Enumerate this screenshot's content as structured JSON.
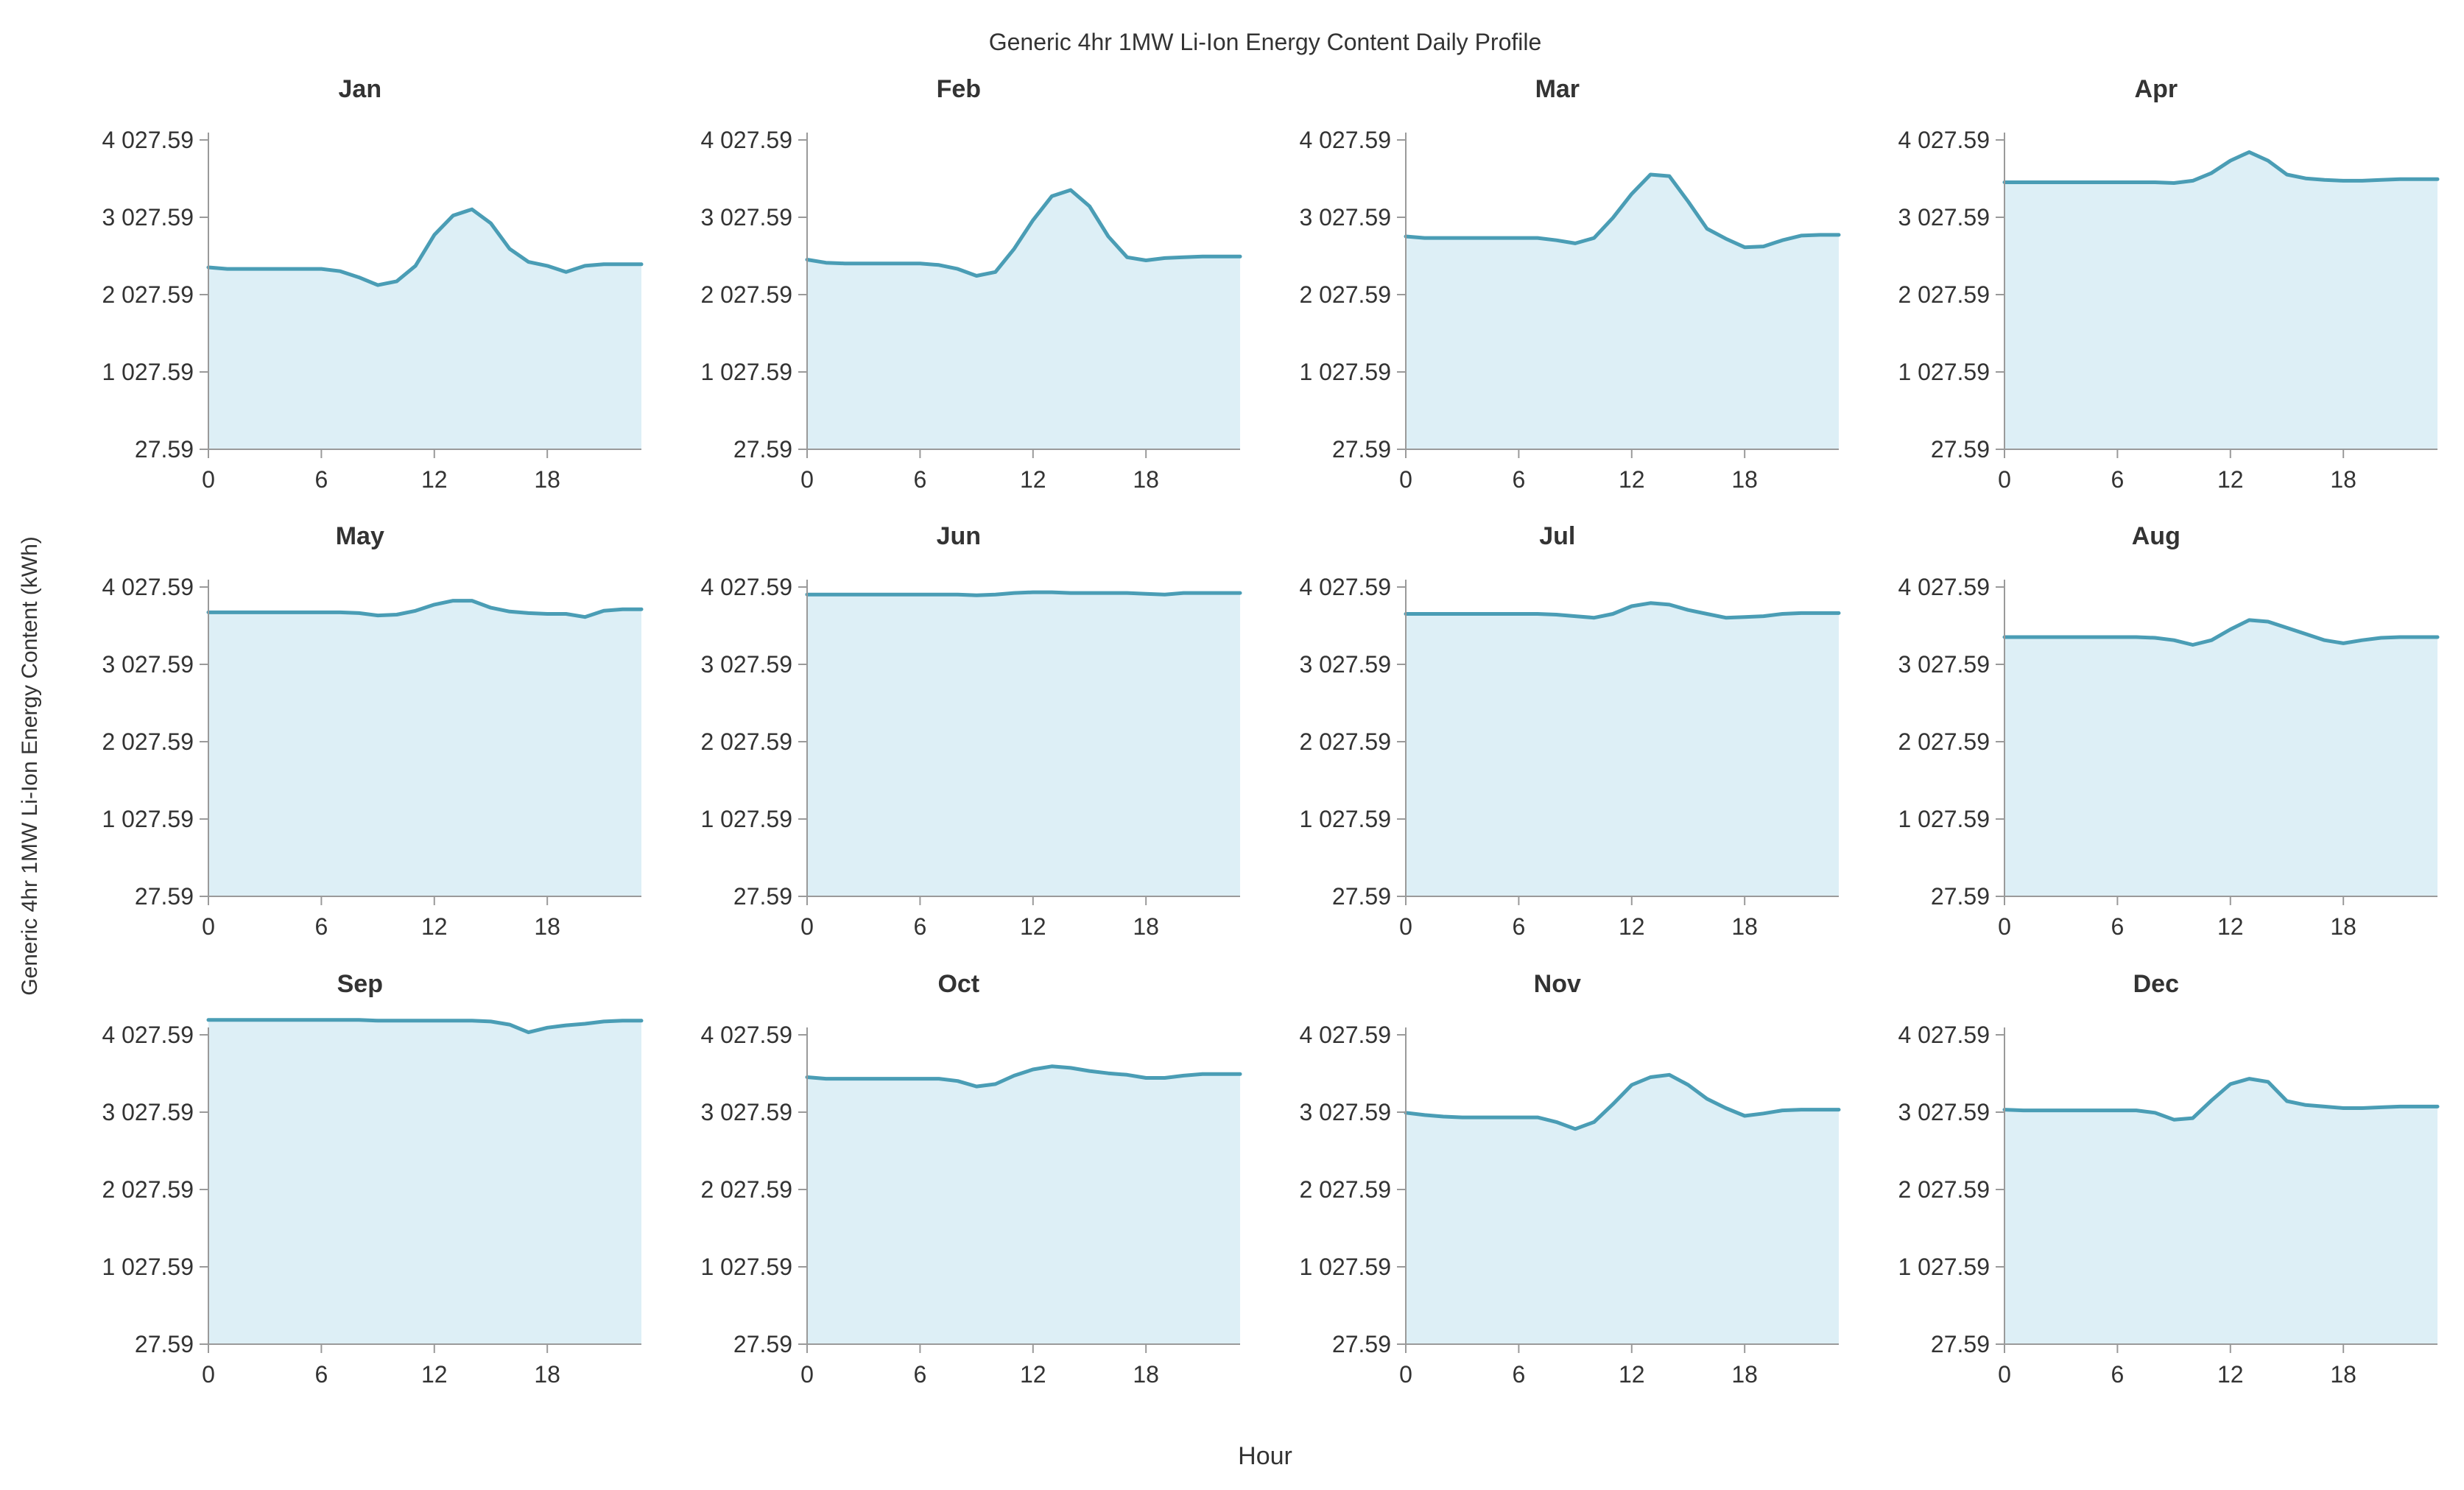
{
  "figure": {
    "title": "Generic 4hr 1MW Li-Ion Energy Content Daily Profile",
    "ylabel": "Generic 4hr 1MW Li-Ion Energy Content (kWh)",
    "xlabel": "Hour"
  },
  "colors": {
    "line": "#4a9db5",
    "fill": "#ddeff6",
    "axis": "#9a9a9a",
    "text": "#333333"
  },
  "chart_data": {
    "type": "area",
    "layout": "small-multiples-3x4",
    "xlabel": "Hour",
    "ylabel": "Generic 4hr 1MW Li-Ion Energy Content (kWh)",
    "ylim": [
      27.59,
      4027.59
    ],
    "xlim": [
      0,
      23
    ],
    "y_ticks": [
      27.59,
      1027.59,
      2027.59,
      3027.59,
      4027.59
    ],
    "y_tick_labels": [
      "27.59",
      "1 027.59",
      "2 027.59",
      "3 027.59",
      "4 027.59"
    ],
    "x_ticks": [
      0,
      6,
      12,
      18
    ],
    "x_tick_labels": [
      "0",
      "6",
      "12",
      "18"
    ],
    "x": [
      0,
      1,
      2,
      3,
      4,
      5,
      6,
      7,
      8,
      9,
      10,
      11,
      12,
      13,
      14,
      15,
      16,
      17,
      18,
      19,
      20,
      21,
      22,
      23
    ],
    "grid": false,
    "legend": "none",
    "panels": [
      {
        "title": "Jan",
        "values": [
          2380,
          2360,
          2360,
          2360,
          2360,
          2360,
          2360,
          2330,
          2250,
          2150,
          2200,
          2400,
          2800,
          3050,
          3130,
          2950,
          2620,
          2450,
          2400,
          2320,
          2400,
          2420,
          2420,
          2420
        ]
      },
      {
        "title": "Feb",
        "values": [
          2480,
          2440,
          2430,
          2430,
          2430,
          2430,
          2430,
          2410,
          2360,
          2270,
          2320,
          2620,
          2990,
          3300,
          3380,
          3170,
          2780,
          2510,
          2470,
          2500,
          2510,
          2520,
          2520,
          2520
        ]
      },
      {
        "title": "Mar",
        "values": [
          2780,
          2760,
          2760,
          2760,
          2760,
          2760,
          2760,
          2760,
          2730,
          2690,
          2760,
          3020,
          3330,
          3580,
          3560,
          3230,
          2880,
          2750,
          2640,
          2650,
          2730,
          2790,
          2800,
          2800
        ]
      },
      {
        "title": "Apr",
        "values": [
          3480,
          3480,
          3480,
          3480,
          3480,
          3480,
          3480,
          3480,
          3480,
          3470,
          3500,
          3600,
          3760,
          3870,
          3760,
          3580,
          3530,
          3510,
          3500,
          3500,
          3510,
          3520,
          3520,
          3520
        ]
      },
      {
        "title": "May",
        "values": [
          3700,
          3700,
          3700,
          3700,
          3700,
          3700,
          3700,
          3700,
          3690,
          3660,
          3670,
          3720,
          3800,
          3850,
          3850,
          3760,
          3710,
          3690,
          3680,
          3680,
          3640,
          3720,
          3740,
          3740
        ]
      },
      {
        "title": "Jun",
        "values": [
          3930,
          3930,
          3930,
          3930,
          3930,
          3930,
          3930,
          3930,
          3930,
          3920,
          3930,
          3950,
          3960,
          3960,
          3950,
          3950,
          3950,
          3950,
          3940,
          3930,
          3950,
          3950,
          3950,
          3950
        ]
      },
      {
        "title": "Jul",
        "values": [
          3680,
          3680,
          3680,
          3680,
          3680,
          3680,
          3680,
          3680,
          3670,
          3650,
          3630,
          3680,
          3780,
          3820,
          3800,
          3730,
          3680,
          3630,
          3640,
          3650,
          3680,
          3690,
          3690,
          3690
        ]
      },
      {
        "title": "Aug",
        "values": [
          3380,
          3380,
          3380,
          3380,
          3380,
          3380,
          3380,
          3380,
          3370,
          3340,
          3280,
          3340,
          3480,
          3600,
          3580,
          3500,
          3420,
          3340,
          3300,
          3340,
          3370,
          3380,
          3380,
          3380
        ]
      },
      {
        "title": "Sep",
        "values": [
          4220,
          4220,
          4220,
          4220,
          4220,
          4220,
          4220,
          4220,
          4220,
          4210,
          4210,
          4210,
          4210,
          4210,
          4210,
          4200,
          4160,
          4060,
          4120,
          4150,
          4170,
          4200,
          4210,
          4210
        ]
      },
      {
        "title": "Oct",
        "values": [
          3480,
          3460,
          3460,
          3460,
          3460,
          3460,
          3460,
          3460,
          3430,
          3360,
          3390,
          3500,
          3580,
          3620,
          3600,
          3560,
          3530,
          3510,
          3470,
          3470,
          3500,
          3520,
          3520,
          3520
        ]
      },
      {
        "title": "Nov",
        "values": [
          3020,
          2990,
          2970,
          2960,
          2960,
          2960,
          2960,
          2960,
          2900,
          2810,
          2900,
          3130,
          3380,
          3480,
          3510,
          3380,
          3200,
          3080,
          2980,
          3010,
          3050,
          3060,
          3060,
          3060
        ]
      },
      {
        "title": "Dec",
        "values": [
          3060,
          3050,
          3050,
          3050,
          3050,
          3050,
          3050,
          3050,
          3020,
          2930,
          2950,
          3180,
          3390,
          3460,
          3420,
          3170,
          3120,
          3100,
          3080,
          3080,
          3090,
          3100,
          3100,
          3100
        ]
      }
    ]
  }
}
